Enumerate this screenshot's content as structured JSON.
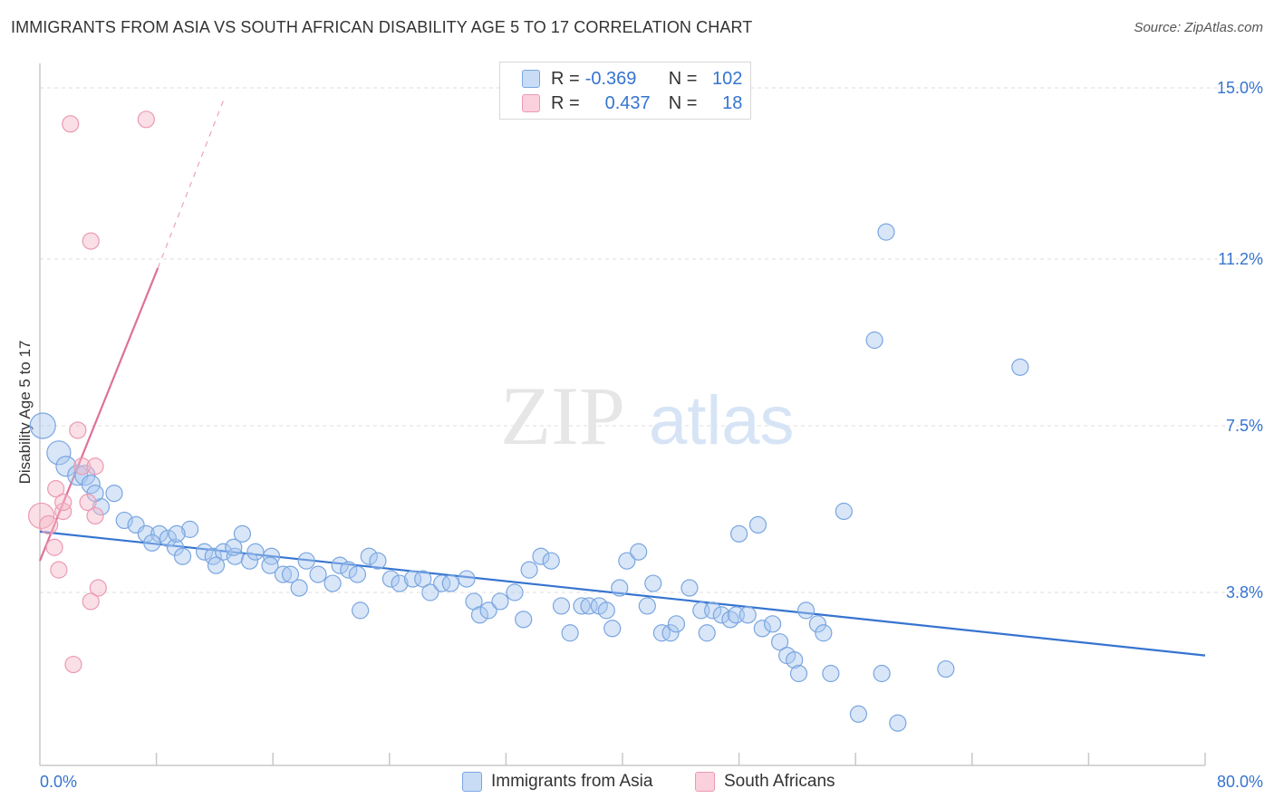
{
  "header": {
    "title": "IMMIGRANTS FROM ASIA VS SOUTH AFRICAN DISABILITY AGE 5 TO 17 CORRELATION CHART",
    "source": "Source: ZipAtlas.com"
  },
  "watermark": {
    "zip": "ZIP",
    "atlas": "atlas"
  },
  "legend": {
    "rows": [
      {
        "r_label": "R =",
        "r_value": "-0.369",
        "n_label": "N =",
        "n_value": "102",
        "color": "#a8c8f0"
      },
      {
        "r_label": "R =",
        "r_value": "0.437",
        "n_label": "N =",
        "n_value": "18",
        "color": "#f4b8c8"
      }
    ]
  },
  "bottom_legend": {
    "series1": "Immigrants from Asia",
    "series2": "South Africans"
  },
  "chart_data": {
    "type": "scatter",
    "title": "IMMIGRANTS FROM ASIA VS SOUTH AFRICAN DISABILITY AGE 5 TO 17 CORRELATION CHART",
    "xlabel": "",
    "ylabel": "Disability Age 5 to 17",
    "xlim": [
      0,
      80
    ],
    "ylim": [
      0,
      15.5
    ],
    "x_tick_labels": [
      "0.0%",
      "80.0%"
    ],
    "y_ticks": [
      3.8,
      7.5,
      11.2,
      15.0
    ],
    "y_tick_labels": [
      "3.8%",
      "7.5%",
      "11.2%",
      "15.0%"
    ],
    "grid": true,
    "colors": {
      "blue": "#3674d0",
      "blue_fill": "#a8c8f0",
      "pink": "#e0709a",
      "pink_fill": "#f4b8c8"
    },
    "series": [
      {
        "name": "Immigrants from Asia",
        "r": -0.369,
        "n": 102,
        "trend": {
          "x": [
            0,
            80
          ],
          "y": [
            5.15,
            2.4
          ]
        },
        "points": [
          [
            0.2,
            7.5,
            14
          ],
          [
            1.3,
            6.9,
            13
          ],
          [
            1.8,
            6.6,
            11
          ],
          [
            2.6,
            6.4,
            11
          ],
          [
            3.1,
            6.4,
            11
          ],
          [
            3.5,
            6.2,
            10
          ],
          [
            5.1,
            6.0,
            9
          ],
          [
            4.2,
            5.7,
            9
          ],
          [
            5.8,
            5.4,
            9
          ],
          [
            6.6,
            5.3,
            9
          ],
          [
            7.3,
            5.1,
            9
          ],
          [
            8.2,
            5.1,
            9
          ],
          [
            8.8,
            5.0,
            9
          ],
          [
            7.7,
            4.9,
            9
          ],
          [
            9.3,
            4.8,
            9
          ],
          [
            10.3,
            5.2,
            9
          ],
          [
            9.8,
            4.6,
            9
          ],
          [
            11.3,
            4.7,
            9
          ],
          [
            11.9,
            4.6,
            9
          ],
          [
            12.6,
            4.7,
            9
          ],
          [
            13.4,
            4.6,
            9
          ],
          [
            12.1,
            4.4,
            9
          ],
          [
            14.4,
            4.5,
            9
          ],
          [
            15.9,
            4.6,
            9
          ],
          [
            13.3,
            4.8,
            9
          ],
          [
            14.8,
            4.7,
            9
          ],
          [
            15.8,
            4.4,
            9
          ],
          [
            16.7,
            4.2,
            9
          ],
          [
            17.2,
            4.2,
            9
          ],
          [
            17.8,
            3.9,
            9
          ],
          [
            18.3,
            4.5,
            9
          ],
          [
            19.1,
            4.2,
            9
          ],
          [
            20.1,
            4.0,
            9
          ],
          [
            20.6,
            4.4,
            9
          ],
          [
            21.2,
            4.3,
            9
          ],
          [
            21.8,
            4.2,
            9
          ],
          [
            22.0,
            3.4,
            9
          ],
          [
            22.6,
            4.6,
            9
          ],
          [
            23.2,
            4.5,
            9
          ],
          [
            24.1,
            4.1,
            9
          ],
          [
            24.7,
            4.0,
            9
          ],
          [
            25.6,
            4.1,
            9
          ],
          [
            26.3,
            4.1,
            9
          ],
          [
            26.8,
            3.8,
            9
          ],
          [
            27.6,
            4.0,
            9
          ],
          [
            28.2,
            4.0,
            9
          ],
          [
            29.3,
            4.1,
            9
          ],
          [
            29.8,
            3.6,
            9
          ],
          [
            30.2,
            3.3,
            9
          ],
          [
            30.8,
            3.4,
            9
          ],
          [
            31.6,
            3.6,
            9
          ],
          [
            32.6,
            3.8,
            9
          ],
          [
            33.2,
            3.2,
            9
          ],
          [
            33.6,
            4.3,
            9
          ],
          [
            34.4,
            4.6,
            9
          ],
          [
            35.1,
            4.5,
            9
          ],
          [
            35.8,
            3.5,
            9
          ],
          [
            37.2,
            3.5,
            9
          ],
          [
            37.7,
            3.5,
            9
          ],
          [
            38.4,
            3.5,
            9
          ],
          [
            38.9,
            3.4,
            9
          ],
          [
            39.3,
            3.0,
            9
          ],
          [
            39.8,
            3.9,
            9
          ],
          [
            40.3,
            4.5,
            9
          ],
          [
            41.1,
            4.7,
            9
          ],
          [
            41.7,
            3.5,
            9
          ],
          [
            42.1,
            4.0,
            9
          ],
          [
            42.7,
            2.9,
            9
          ],
          [
            43.3,
            2.9,
            9
          ],
          [
            43.7,
            3.1,
            9
          ],
          [
            44.6,
            3.9,
            9
          ],
          [
            45.4,
            3.4,
            9
          ],
          [
            45.8,
            2.9,
            9
          ],
          [
            46.2,
            3.4,
            9
          ],
          [
            46.8,
            3.3,
            9
          ],
          [
            47.4,
            3.2,
            9
          ],
          [
            47.8,
            3.3,
            9
          ],
          [
            48.6,
            3.3,
            9
          ],
          [
            48.0,
            5.1,
            9
          ],
          [
            49.3,
            5.3,
            9
          ],
          [
            49.6,
            3.0,
            9
          ],
          [
            50.3,
            3.1,
            9
          ],
          [
            50.8,
            2.7,
            9
          ],
          [
            51.3,
            2.4,
            9
          ],
          [
            51.8,
            2.3,
            9
          ],
          [
            52.1,
            2.0,
            9
          ],
          [
            52.6,
            3.4,
            9
          ],
          [
            53.4,
            3.1,
            9
          ],
          [
            53.8,
            2.9,
            9
          ],
          [
            54.3,
            2.0,
            9
          ],
          [
            55.2,
            5.6,
            9
          ],
          [
            56.2,
            1.1,
            9
          ],
          [
            57.3,
            9.4,
            9
          ],
          [
            57.8,
            2.0,
            9
          ],
          [
            58.1,
            11.8,
            9
          ],
          [
            58.9,
            0.9,
            9
          ],
          [
            62.2,
            2.1,
            9
          ],
          [
            67.3,
            8.8,
            9
          ],
          [
            3.8,
            6.0,
            9
          ],
          [
            9.4,
            5.1,
            9
          ],
          [
            13.9,
            5.1,
            9
          ],
          [
            36.4,
            2.9,
            9
          ]
        ]
      },
      {
        "name": "South Africans",
        "r": 0.437,
        "n": 18,
        "trend": {
          "x": [
            0,
            8.1
          ],
          "y": [
            4.5,
            11.0
          ],
          "dashed_to": [
            12.7,
            14.8
          ]
        },
        "points": [
          [
            0.1,
            5.5,
            14
          ],
          [
            0.6,
            5.3,
            10
          ],
          [
            1.0,
            4.8,
            9
          ],
          [
            1.1,
            6.1,
            9
          ],
          [
            1.3,
            4.3,
            9
          ],
          [
            1.6,
            5.6,
            9
          ],
          [
            2.1,
            14.2,
            9
          ],
          [
            2.3,
            2.2,
            9
          ],
          [
            2.6,
            7.4,
            9
          ],
          [
            2.9,
            6.6,
            9
          ],
          [
            3.3,
            5.8,
            9
          ],
          [
            3.5,
            11.6,
            9
          ],
          [
            3.8,
            6.6,
            9
          ],
          [
            4.0,
            3.9,
            9
          ],
          [
            3.8,
            5.5,
            9
          ],
          [
            1.6,
            5.8,
            9
          ],
          [
            3.5,
            3.6,
            9
          ],
          [
            7.3,
            14.3,
            9
          ]
        ]
      }
    ]
  }
}
